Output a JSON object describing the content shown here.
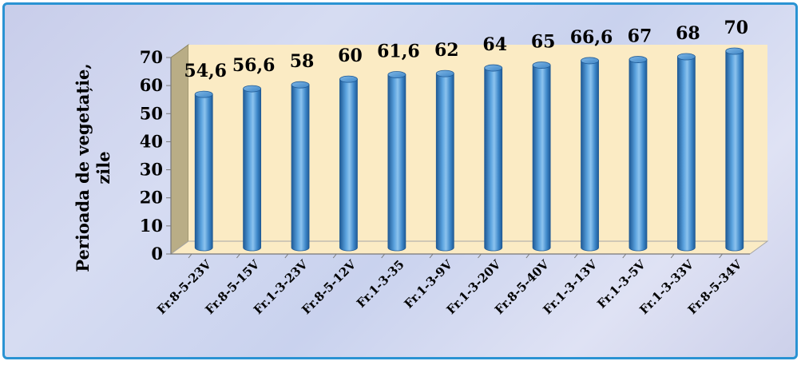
{
  "chart_data": {
    "type": "bar",
    "style": "3d-cylinder",
    "categories": [
      "Fr.8-5-23V",
      "Fr.8-5-15V",
      "Fr.1-3-23V",
      "Fr.8-5-12V",
      "Fr.1-3-35",
      "Fr.1-3-9V",
      "Fr.1-3-20V",
      "Fr.8-5-40V",
      "Fr.1-3-13V",
      "Fr.1-3-5V",
      "Fr.1-3-33V",
      "Fr.8-5-34V"
    ],
    "values": [
      54.6,
      56.6,
      58,
      60,
      61.6,
      62,
      64,
      65,
      66.6,
      67,
      68,
      70
    ],
    "data_labels": [
      "54,6",
      "56,6",
      "58",
      "60",
      "61,6",
      "62",
      "64",
      "65",
      "66,6",
      "67",
      "68",
      "70"
    ],
    "title": "",
    "xlabel": "",
    "ylabel_line1": "Perioada de vegetație,",
    "ylabel_line2": "zile",
    "ylim": [
      0,
      70
    ],
    "yticks": [
      "0",
      "10",
      "20",
      "30",
      "40",
      "50",
      "60",
      "70"
    ],
    "grid": false,
    "legend": "none",
    "colors": {
      "bar": "#3d87c9",
      "bar_dark": "#1f5a96",
      "bar_light": "#8cc3ee",
      "back_wall": "#fbebc4",
      "side_wall": "#b9ad86",
      "floor": "#fbebc4",
      "frame_border": "#2a93d3"
    }
  }
}
